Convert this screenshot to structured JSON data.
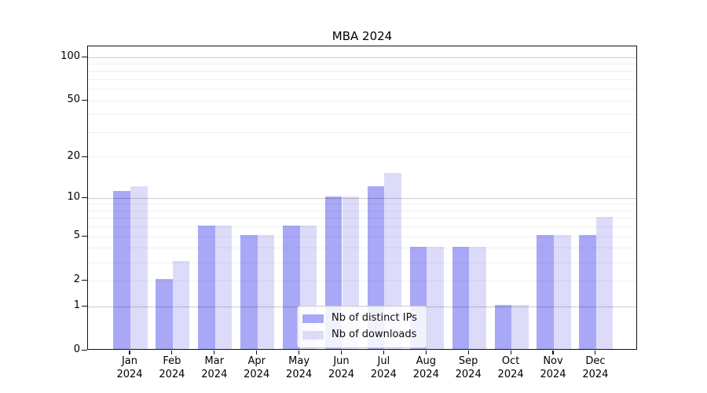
{
  "chart_data": {
    "type": "bar",
    "title": "MBA 2024",
    "categories": [
      "Jan 2024",
      "Feb 2024",
      "Mar 2024",
      "Apr 2024",
      "May 2024",
      "Jun 2024",
      "Jul 2024",
      "Aug 2024",
      "Sep 2024",
      "Oct 2024",
      "Nov 2024",
      "Dec 2024"
    ],
    "series": [
      {
        "name": "Nb of distinct IPs",
        "color": "#a8a8f7",
        "values": [
          11,
          2,
          6,
          5,
          6,
          10,
          12,
          4,
          4,
          1,
          5,
          5
        ]
      },
      {
        "name": "Nb of downloads",
        "color": "#dcdcfa",
        "values": [
          12,
          3,
          6,
          5,
          6,
          10,
          15,
          4,
          4,
          1,
          5,
          7
        ]
      }
    ],
    "xlabel": "",
    "ylabel": "",
    "yscale": "log1p",
    "ylim": [
      0,
      117
    ],
    "yticks": [
      0,
      1,
      2,
      5,
      10,
      20,
      50,
      100
    ],
    "major_gridlines": [
      1,
      10,
      100
    ],
    "minor_gridlines": [
      2,
      3,
      4,
      5,
      6,
      7,
      8,
      9,
      20,
      30,
      40,
      50,
      60,
      70,
      80,
      90
    ],
    "grid": true,
    "legend_position": "bottom-center"
  },
  "colors": {
    "bar_distinct_ips": "#a8a8f7",
    "bar_downloads": "#dcdcfa",
    "grid_major": "rgba(0,0,0,0.20)",
    "grid_minor": "rgba(0,0,0,0.055)",
    "spine": "#121212",
    "tick": "#121212",
    "text": "#000000",
    "legend_border": "#cccccc",
    "legend_background": "rgba(255,255,255,0.85)"
  }
}
